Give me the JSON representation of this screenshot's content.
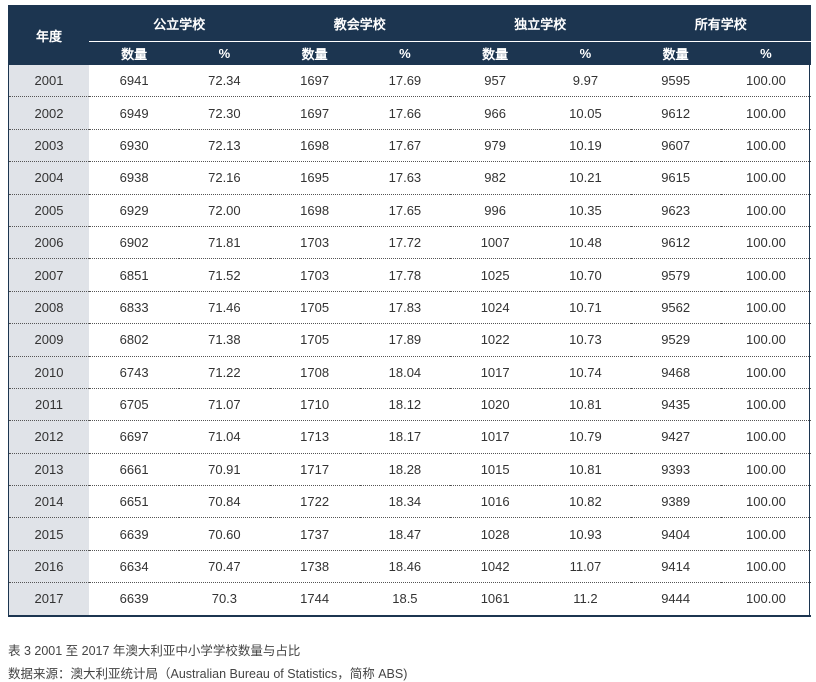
{
  "table": {
    "year_header": "年度",
    "groups": [
      "公立学校",
      "教会学校",
      "独立学校",
      "所有学校"
    ],
    "subheaders": [
      "数量",
      "%"
    ],
    "rows": [
      [
        "2001",
        "6941",
        "72.34",
        "1697",
        "17.69",
        "957",
        "9.97",
        "9595",
        "100.00"
      ],
      [
        "2002",
        "6949",
        "72.30",
        "1697",
        "17.66",
        "966",
        "10.05",
        "9612",
        "100.00"
      ],
      [
        "2003",
        "6930",
        "72.13",
        "1698",
        "17.67",
        "979",
        "10.19",
        "9607",
        "100.00"
      ],
      [
        "2004",
        "6938",
        "72.16",
        "1695",
        "17.63",
        "982",
        "10.21",
        "9615",
        "100.00"
      ],
      [
        "2005",
        "6929",
        "72.00",
        "1698",
        "17.65",
        "996",
        "10.35",
        "9623",
        "100.00"
      ],
      [
        "2006",
        "6902",
        "71.81",
        "1703",
        "17.72",
        "1007",
        "10.48",
        "9612",
        "100.00"
      ],
      [
        "2007",
        "6851",
        "71.52",
        "1703",
        "17.78",
        "1025",
        "10.70",
        "9579",
        "100.00"
      ],
      [
        "2008",
        "6833",
        "71.46",
        "1705",
        "17.83",
        "1024",
        "10.71",
        "9562",
        "100.00"
      ],
      [
        "2009",
        "6802",
        "71.38",
        "1705",
        "17.89",
        "1022",
        "10.73",
        "9529",
        "100.00"
      ],
      [
        "2010",
        "6743",
        "71.22",
        "1708",
        "18.04",
        "1017",
        "10.74",
        "9468",
        "100.00"
      ],
      [
        "2011",
        "6705",
        "71.07",
        "1710",
        "18.12",
        "1020",
        "10.81",
        "9435",
        "100.00"
      ],
      [
        "2012",
        "6697",
        "71.04",
        "1713",
        "18.17",
        "1017",
        "10.79",
        "9427",
        "100.00"
      ],
      [
        "2013",
        "6661",
        "70.91",
        "1717",
        "18.28",
        "1015",
        "10.81",
        "9393",
        "100.00"
      ],
      [
        "2014",
        "6651",
        "70.84",
        "1722",
        "18.34",
        "1016",
        "10.82",
        "9389",
        "100.00"
      ],
      [
        "2015",
        "6639",
        "70.60",
        "1737",
        "18.47",
        "1028",
        "10.93",
        "9404",
        "100.00"
      ],
      [
        "2016",
        "6634",
        "70.47",
        "1738",
        "18.46",
        "1042",
        "11.07",
        "9414",
        "100.00"
      ],
      [
        "2017",
        "6639",
        "70.3",
        "1744",
        "18.5",
        "1061",
        "11.2",
        "9444",
        "100.00"
      ]
    ]
  },
  "caption": "表 3 2001 至 2017 年澳大利亚中小学学校数量与占比",
  "source": "数据来源：澳大利亚统计局（Australian Bureau of Statistics，简称 ABS)",
  "colors": {
    "header_bg": "#1c3550",
    "year_col_bg": "#e0e3e8"
  }
}
